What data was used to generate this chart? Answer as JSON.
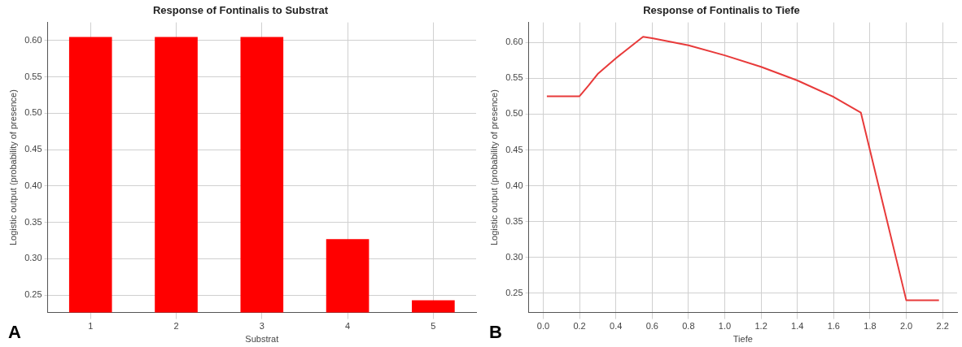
{
  "chart_data": [
    {
      "type": "bar",
      "title": "Response of Fontinalis to Substrat",
      "xlabel": "Substrat",
      "ylabel": "Logistic output (probability of presence)",
      "annotations": [
        "A"
      ],
      "categories": [
        "1",
        "2",
        "3",
        "4",
        "5"
      ],
      "values": [
        0.605,
        0.605,
        0.605,
        0.327,
        0.243
      ],
      "color": "#ff0000",
      "ylim": [
        0.226,
        0.625
      ],
      "yticks": [
        {
          "value": 0.25,
          "label": "0.25"
        },
        {
          "value": 0.3,
          "label": "0.30"
        },
        {
          "value": 0.35,
          "label": "0.35"
        },
        {
          "value": 0.4,
          "label": "0.40"
        },
        {
          "value": 0.45,
          "label": "0.45"
        },
        {
          "value": 0.5,
          "label": "0.50"
        },
        {
          "value": 0.55,
          "label": "0.55"
        },
        {
          "value": 0.6,
          "label": "0.60"
        }
      ],
      "grid": true
    },
    {
      "type": "line",
      "title": "Response of Fontinalis to Tiefe",
      "xlabel": "Tiefe",
      "ylabel": "Logistic output (probability of presence)",
      "annotations": [
        "B"
      ],
      "x": [
        0.02,
        0.2,
        0.25,
        0.3,
        0.4,
        0.55,
        0.6,
        0.8,
        1.0,
        1.2,
        1.4,
        1.6,
        1.75,
        2.0,
        2.18
      ],
      "values": [
        0.525,
        0.525,
        0.54,
        0.556,
        0.578,
        0.608,
        0.606,
        0.596,
        0.582,
        0.566,
        0.547,
        0.524,
        0.502,
        0.24,
        0.24
      ],
      "color": "#e83a3a",
      "xlim": [
        -0.08,
        2.28
      ],
      "xticks": [
        {
          "value": 0,
          "label": "0.0"
        },
        0.2,
        0.4,
        0.6,
        0.8,
        {
          "value": 1,
          "label": "1.0"
        },
        1.2,
        1.4,
        1.6,
        1.8,
        {
          "value": 2,
          "label": "2.0"
        },
        2.2
      ],
      "ylim": [
        0.223,
        0.628
      ],
      "yticks": [
        {
          "value": 0.25,
          "label": "0.25"
        },
        {
          "value": 0.3,
          "label": "0.30"
        },
        {
          "value": 0.35,
          "label": "0.35"
        },
        {
          "value": 0.4,
          "label": "0.40"
        },
        {
          "value": 0.45,
          "label": "0.45"
        },
        {
          "value": 0.5,
          "label": "0.50"
        },
        {
          "value": 0.55,
          "label": "0.55"
        },
        {
          "value": 0.6,
          "label": "0.60"
        }
      ],
      "grid": true,
      "marker": "none"
    }
  ]
}
